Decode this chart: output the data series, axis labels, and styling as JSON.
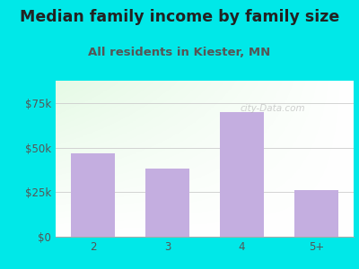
{
  "title": "Median family income by family size",
  "subtitle": "All residents in Kiester, MN",
  "categories": [
    "2",
    "3",
    "4",
    "5+"
  ],
  "values": [
    47000,
    38000,
    70000,
    26000
  ],
  "bar_color": "#c4aee0",
  "background_color": "#00e8e8",
  "ylim": [
    0,
    87500
  ],
  "yticks": [
    0,
    25000,
    50000,
    75000
  ],
  "ytick_labels": [
    "$0",
    "$25k",
    "$50k",
    "$75k"
  ],
  "title_fontsize": 12.5,
  "subtitle_fontsize": 9.5,
  "tick_fontsize": 8.5,
  "watermark": "city-Data.com",
  "title_color": "#222222",
  "subtitle_color": "#555555",
  "tick_color": "#555555"
}
